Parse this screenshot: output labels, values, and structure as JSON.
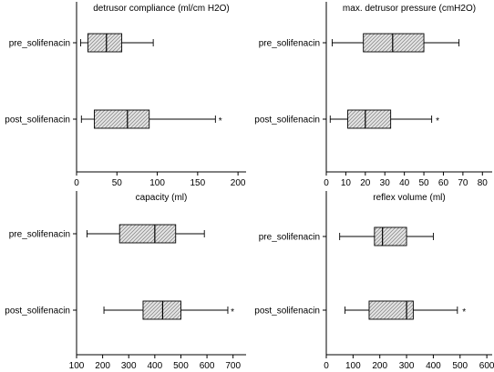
{
  "chart_data": [
    {
      "type": "boxplot",
      "title": "detrusor compliance (ml/cm H2O)",
      "categories": [
        "pre_solifenacin",
        "post_solifenacin"
      ],
      "xlim": [
        0,
        210
      ],
      "xticks": [
        "0",
        "50",
        "100",
        "150",
        "200"
      ],
      "series": [
        {
          "label": "pre_solifenacin",
          "whisker_low": 5,
          "q1": 14,
          "median": 37,
          "q3": 56,
          "whisker_high": 95,
          "outliers": []
        },
        {
          "label": "post_solifenacin",
          "whisker_low": 6,
          "q1": 22,
          "median": 63,
          "q3": 90,
          "whisker_high": 172,
          "outliers": [
            178
          ]
        }
      ]
    },
    {
      "type": "boxplot",
      "title": "max. detrusor pressure (cmH2O)",
      "categories": [
        "pre_solifenacin",
        "post_solifenacin"
      ],
      "xlim": [
        0,
        85
      ],
      "xticks": [
        "0",
        "10",
        "20",
        "30",
        "40",
        "50",
        "60",
        "70",
        "80"
      ],
      "series": [
        {
          "label": "pre_solifenacin",
          "whisker_low": 3,
          "q1": 19,
          "median": 34,
          "q3": 50,
          "whisker_high": 68,
          "outliers": []
        },
        {
          "label": "post_solifenacin",
          "whisker_low": 2,
          "q1": 11,
          "median": 20,
          "q3": 33,
          "whisker_high": 54,
          "outliers": [
            57
          ]
        }
      ]
    },
    {
      "type": "boxplot",
      "title": "capacity (ml)",
      "categories": [
        "pre_solifenacin",
        "post_solifenacin"
      ],
      "xlim": [
        100,
        750
      ],
      "xticks": [
        "100",
        "200",
        "300",
        "400",
        "500",
        "600",
        "700"
      ],
      "series": [
        {
          "label": "pre_solifenacin",
          "whisker_low": 140,
          "q1": 265,
          "median": 400,
          "q3": 480,
          "whisker_high": 590,
          "outliers": []
        },
        {
          "label": "post_solifenacin",
          "whisker_low": 205,
          "q1": 355,
          "median": 430,
          "q3": 500,
          "whisker_high": 680,
          "outliers": [
            698
          ]
        }
      ]
    },
    {
      "type": "boxplot",
      "title": "reflex volume (ml)",
      "categories": [
        "pre_solifenacin",
        "post_solifenacin"
      ],
      "xlim": [
        0,
        620
      ],
      "xticks": [
        "0",
        "100",
        "200",
        "300",
        "400",
        "500",
        "600"
      ],
      "series": [
        {
          "label": "pre_solifenacin",
          "whisker_low": 50,
          "q1": 180,
          "median": 210,
          "q3": 300,
          "whisker_high": 400,
          "outliers": []
        },
        {
          "label": "post_solifenacin",
          "whisker_low": 70,
          "q1": 160,
          "median": 300,
          "q3": 325,
          "whisker_high": 490,
          "outliers": [
            515
          ]
        }
      ]
    }
  ]
}
